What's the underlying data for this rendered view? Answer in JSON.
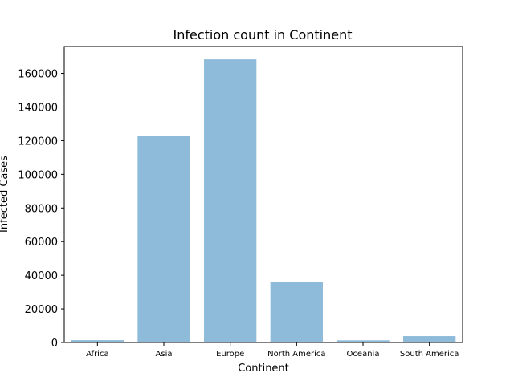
{
  "chart_data": {
    "type": "bar",
    "title": "Infection count in Continent",
    "xlabel": "Continent",
    "ylabel": "Infected Cases",
    "categories": [
      "Africa",
      "Asia",
      "Europe",
      "North America",
      "Oceania",
      "South America"
    ],
    "values": [
      1400,
      122800,
      168300,
      36000,
      1300,
      3800
    ],
    "ylim": [
      0,
      176000
    ],
    "yticks": [
      0,
      20000,
      40000,
      60000,
      80000,
      100000,
      120000,
      140000,
      160000
    ],
    "bar_color": "#8fbbda",
    "grid": false,
    "legend": "none"
  }
}
